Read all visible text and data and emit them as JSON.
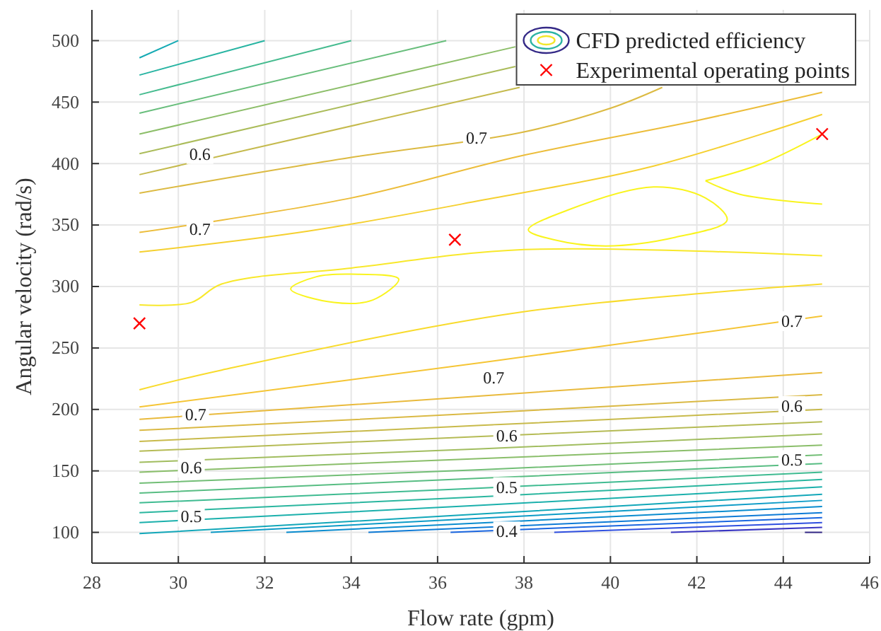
{
  "chart_data": {
    "type": "line",
    "xlabel": "Flow rate (gpm)",
    "ylabel": "Angular velocity (rad/s)",
    "xlim": [
      28,
      46
    ],
    "xticks": [
      28,
      30,
      32,
      34,
      36,
      38,
      40,
      42,
      44,
      46
    ],
    "ylim": [
      75,
      525
    ],
    "yticks": [
      100,
      150,
      200,
      250,
      300,
      350,
      400,
      450,
      500
    ],
    "grid": true,
    "legend": "top right",
    "series": [
      {
        "name": "CFD predicted efficiency",
        "color": "#352a87",
        "x": [
          44.5,
          44.9
        ],
        "values": [
          100,
          100
        ]
      },
      {
        "color": "#3a36c2",
        "x": [
          41.4,
          44.9
        ],
        "values": [
          100,
          104
        ]
      },
      {
        "color": "#2f4fe0",
        "x": [
          38.7,
          44.9
        ],
        "values": [
          100,
          108
        ]
      },
      {
        "color": "#1a66e0",
        "x": [
          36.3,
          44.9
        ],
        "values": [
          100,
          112
        ]
      },
      {
        "color": "#0f7bd6",
        "x": [
          34.4,
          44.9
        ],
        "values": [
          100,
          116
        ]
      },
      {
        "color": "#0a8ccf",
        "x": [
          32.5,
          44.9
        ],
        "values": [
          100,
          121
        ]
      },
      {
        "color": "#0d9bc7",
        "x": [
          30.75,
          44.9
        ],
        "values": [
          100,
          126
        ]
      },
      {
        "color": "#12a7b9",
        "x": [
          29.1,
          37,
          44.9
        ],
        "values": [
          99,
          115,
          131
        ]
      },
      {
        "color": "#1bb0ac",
        "x": [
          29.1,
          37,
          44.9
        ],
        "values": [
          108,
          122,
          137
        ]
      },
      {
        "color": "#2ab69f",
        "x": [
          29.1,
          37,
          44.9
        ],
        "values": [
          116,
          129,
          143
        ]
      },
      {
        "color": "#3fbb91",
        "x": [
          29.1,
          37,
          44.9
        ],
        "values": [
          124,
          136,
          149
        ]
      },
      {
        "color": "#58bd83",
        "x": [
          29.1,
          37,
          44.9
        ],
        "values": [
          132,
          144,
          156
        ]
      },
      {
        "color": "#72be76",
        "x": [
          29.1,
          37,
          44.9
        ],
        "values": [
          140,
          151,
          163
        ]
      },
      {
        "color": "#8abe6a",
        "x": [
          29.1,
          37,
          44.9
        ],
        "values": [
          149,
          160,
          171
        ]
      },
      {
        "color": "#a1bd5f",
        "x": [
          29.1,
          37,
          44.9
        ],
        "values": [
          157,
          168,
          180
        ]
      },
      {
        "color": "#b5bb55",
        "x": [
          29.1,
          37,
          44.9
        ],
        "values": [
          166,
          178,
          190
        ]
      },
      {
        "color": "#c8ba4b",
        "x": [
          29.1,
          37,
          44.9
        ],
        "values": [
          174,
          187,
          200
        ]
      },
      {
        "color": "#dab944",
        "x": [
          29.1,
          37,
          44.9
        ],
        "values": [
          183,
          197,
          212
        ]
      },
      {
        "color": "#e9ba3c",
        "x": [
          29.1,
          37,
          44.9
        ],
        "values": [
          192,
          211,
          230
        ]
      },
      {
        "color": "#f5c535",
        "x": [
          29.1,
          37,
          44.9
        ],
        "values": [
          202,
          238,
          276
        ]
      },
      {
        "color": "#f8db2c",
        "x": [
          29.1,
          31,
          37.9,
          44.9
        ],
        "values": [
          216,
          232,
          279,
          302
        ]
      },
      {
        "color": "#15aab4",
        "x": [
          29.1,
          30
        ],
        "values": [
          486,
          500
        ]
      },
      {
        "color": "#27b4a2",
        "x": [
          29.1,
          32
        ],
        "values": [
          472,
          500
        ]
      },
      {
        "color": "#45bb8f",
        "x": [
          29.1,
          34
        ],
        "values": [
          456,
          500
        ]
      },
      {
        "color": "#68be7c",
        "x": [
          29.1,
          36.2
        ],
        "values": [
          441,
          500
        ]
      },
      {
        "color": "#8cbe69",
        "x": [
          29.1,
          37.8
        ],
        "values": [
          424,
          495
        ]
      },
      {
        "color": "#abbc5a",
        "x": [
          29.1,
          37.8
        ],
        "values": [
          408,
          479
        ]
      },
      {
        "color": "#c5ba4d",
        "x": [
          29.1,
          37.9
        ],
        "values": [
          391,
          462
        ]
      },
      {
        "color": "#dcba42",
        "x": [
          29.1,
          34,
          37.9,
          40,
          41.2
        ],
        "values": [
          376,
          405,
          425,
          445,
          462
        ]
      },
      {
        "color": "#ecbd3a",
        "x": [
          29.1,
          34,
          37.9,
          42,
          44.9
        ],
        "values": [
          344,
          372,
          406,
          435,
          458
        ]
      },
      {
        "color": "#f5d030",
        "x": [
          29.1,
          33,
          37,
          41,
          44.9
        ],
        "values": [
          328,
          345,
          370,
          398,
          440
        ]
      },
      {
        "color": "#f8e82a",
        "x": [
          29.1,
          30.3,
          31,
          34,
          38,
          44.9
        ],
        "values": [
          285,
          287,
          302,
          315,
          330,
          325
        ]
      },
      {
        "color": "#f9f41e",
        "x": [
          42.2,
          43.5,
          44.9
        ],
        "values": [
          386,
          400,
          424
        ]
      },
      {
        "color": "#f9f41e",
        "x": [
          42.2,
          43,
          44.9
        ],
        "values": [
          386,
          375,
          367
        ]
      },
      {
        "name": "Experimental operating points",
        "type": "scatter",
        "color": "#ff0000",
        "marker": "cross",
        "x": [
          29.1,
          36.4,
          44.9
        ],
        "values": [
          270,
          338,
          424
        ]
      }
    ],
    "annotations": [
      {
        "text": "0.6",
        "x": 30.5,
        "y": 408
      },
      {
        "text": "0.7",
        "x": 30.5,
        "y": 347
      },
      {
        "text": "0.7",
        "x": 36.9,
        "y": 421
      },
      {
        "text": "0.7",
        "x": 30.4,
        "y": 196
      },
      {
        "text": "0.6",
        "x": 30.3,
        "y": 153
      },
      {
        "text": "0.5",
        "x": 30.3,
        "y": 113
      },
      {
        "text": "0.7",
        "x": 37.3,
        "y": 226
      },
      {
        "text": "0.6",
        "x": 37.6,
        "y": 179
      },
      {
        "text": "0.5",
        "x": 37.6,
        "y": 137
      },
      {
        "text": "0.4",
        "x": 37.6,
        "y": 101
      },
      {
        "text": "0.7",
        "x": 44.2,
        "y": 272
      },
      {
        "text": "0.6",
        "x": 44.2,
        "y": 203
      },
      {
        "text": "0.5",
        "x": 44.2,
        "y": 159
      }
    ]
  }
}
